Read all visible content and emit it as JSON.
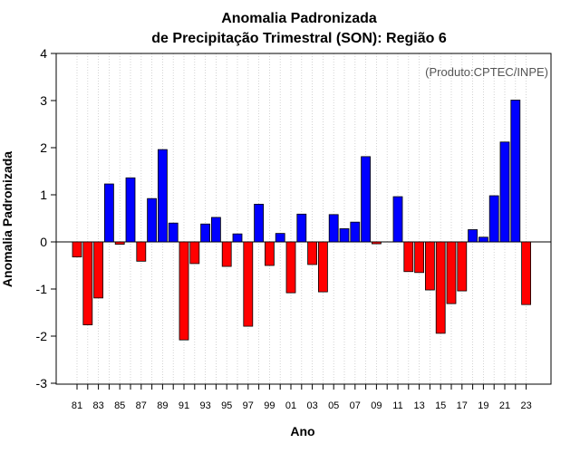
{
  "chart_data": {
    "type": "bar",
    "title_line1": "Anomalia Padronizada",
    "title_line2": "de Precipitação Trimestral (SON): Região 6",
    "xlabel": "Ano",
    "ylabel": "Anomalia Padronizada",
    "source": "(Produto:CPTEC/INPE)",
    "ylim": [
      -3,
      4
    ],
    "yticks": [
      -3,
      -2,
      -1,
      0,
      1,
      2,
      3,
      4
    ],
    "grid": "vertical dotted",
    "positive_color": "#0000ff",
    "negative_color": "#ff0000",
    "categories": [
      "81",
      "82",
      "83",
      "84",
      "85",
      "86",
      "87",
      "88",
      "89",
      "90",
      "91",
      "92",
      "93",
      "94",
      "95",
      "96",
      "97",
      "98",
      "99",
      "00",
      "01",
      "02",
      "03",
      "04",
      "05",
      "06",
      "07",
      "08",
      "09",
      "10",
      "11",
      "12",
      "13",
      "14",
      "15",
      "16",
      "17",
      "18",
      "19",
      "20",
      "21",
      "22",
      "23"
    ],
    "xtick_labels": [
      "81",
      "83",
      "85",
      "87",
      "89",
      "91",
      "93",
      "95",
      "97",
      "99",
      "01",
      "03",
      "05",
      "07",
      "09",
      "11",
      "13",
      "15",
      "17",
      "19",
      "21",
      "23"
    ],
    "values": [
      -0.32,
      -1.76,
      -1.19,
      1.23,
      -0.05,
      1.36,
      -0.41,
      0.92,
      1.96,
      0.4,
      -2.08,
      -0.46,
      0.38,
      0.52,
      -0.52,
      0.17,
      -1.79,
      0.8,
      -0.5,
      0.18,
      -1.08,
      0.59,
      -0.48,
      -1.06,
      0.58,
      0.28,
      0.42,
      1.81,
      -0.04,
      0.0,
      0.96,
      -0.63,
      -0.65,
      -1.02,
      -1.94,
      -1.31,
      -1.04,
      0.26,
      0.1,
      0.98,
      2.12,
      3.01,
      -1.33
    ]
  }
}
